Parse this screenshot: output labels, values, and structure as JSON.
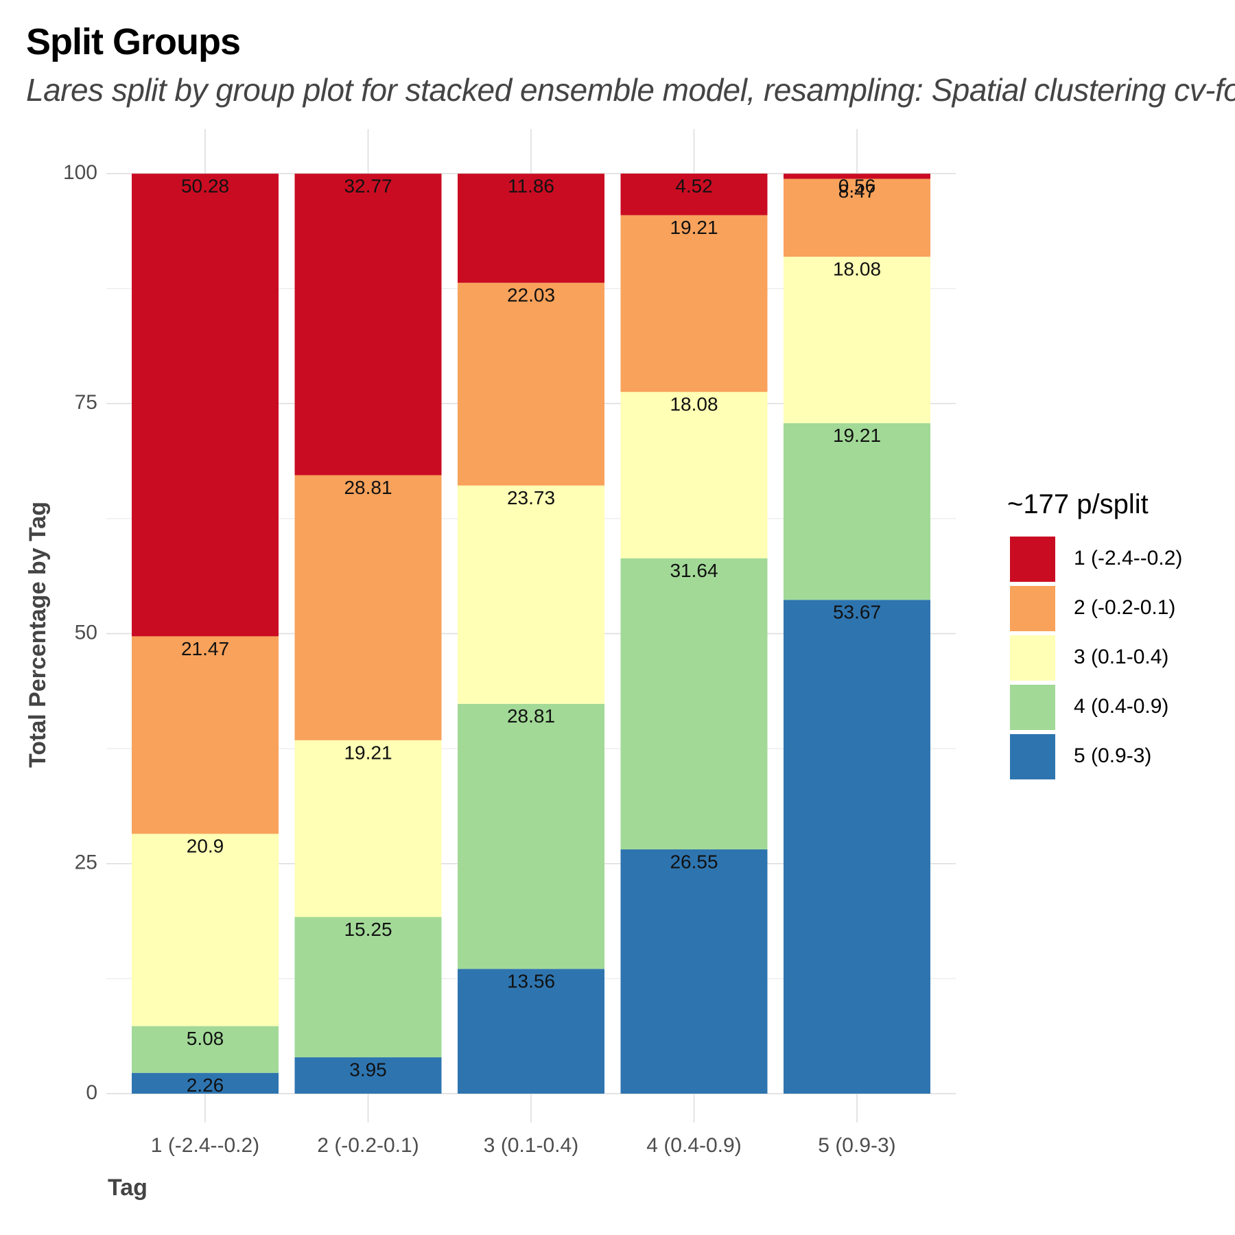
{
  "header": {
    "title": "Split Groups",
    "subtitle": "Lares split by group plot for stacked ensemble model, resampling: Spatial clustering cv-fo"
  },
  "legend": {
    "title": "~177 p/split"
  },
  "colors": {
    "1 (-2.4--0.2)": "#ca0c22",
    "2 (-0.2-0.1)": "#f8a25b",
    "3 (0.1-0.4)": "#ffffb5",
    "4 (0.4-0.9)": "#a2d997",
    "5 (0.9-3)": "#2e75b0"
  },
  "chart_data": {
    "type": "bar",
    "stacked": true,
    "xlabel": "Tag",
    "ylabel": "Total Percentage by Tag",
    "ylim": [
      0,
      100
    ],
    "yticks": [
      0,
      25,
      50,
      75,
      100
    ],
    "grid": true,
    "legend_position": "right",
    "categories": [
      "1 (-2.4--0.2)",
      "2 (-0.2-0.1)",
      "3 (0.1-0.4)",
      "4 (0.4-0.9)",
      "5 (0.9-3)"
    ],
    "series": [
      {
        "name": "5 (0.9-3)",
        "values": [
          2.26,
          3.95,
          13.56,
          26.55,
          53.67
        ]
      },
      {
        "name": "4 (0.4-0.9)",
        "values": [
          5.08,
          15.25,
          28.81,
          31.64,
          19.21
        ]
      },
      {
        "name": "3 (0.1-0.4)",
        "values": [
          20.9,
          19.21,
          23.73,
          18.08,
          18.08
        ]
      },
      {
        "name": "2 (-0.2-0.1)",
        "values": [
          21.47,
          28.81,
          22.03,
          19.21,
          8.47
        ]
      },
      {
        "name": "1 (-2.4--0.2)",
        "values": [
          50.28,
          32.77,
          11.86,
          4.52,
          0.56
        ]
      }
    ],
    "legend_order": [
      "1 (-2.4--0.2)",
      "2 (-0.2-0.1)",
      "3 (0.1-0.4)",
      "4 (0.4-0.9)",
      "5 (0.9-3)"
    ]
  }
}
